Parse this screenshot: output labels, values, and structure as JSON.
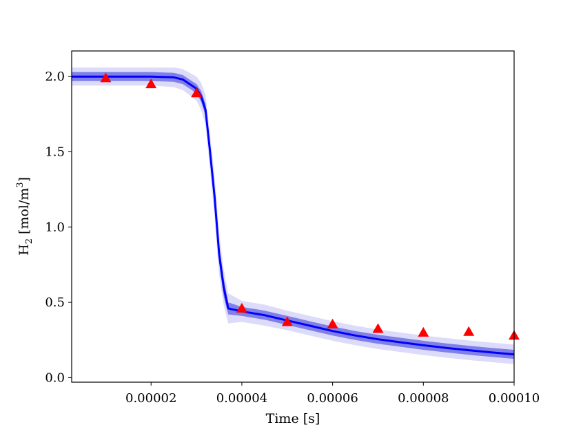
{
  "chart_data": {
    "type": "line",
    "xlabel": "Time [s]",
    "ylabel_parts": {
      "base": "H",
      "sub": "2",
      "mid": " [mol/m",
      "sup": "3",
      "end": "]"
    },
    "xlim": [
      2.5e-06,
      0.0001
    ],
    "ylim": [
      -0.03,
      2.17
    ],
    "x_ticks": [
      2e-05,
      4e-05,
      6e-05,
      8e-05,
      0.0001
    ],
    "x_tick_labels": [
      "0.00002",
      "0.00004",
      "0.00006",
      "0.00008",
      "0.00010"
    ],
    "y_ticks": [
      0.0,
      0.5,
      1.0,
      1.5,
      2.0
    ],
    "y_tick_labels": [
      "0.0",
      "0.5",
      "1.0",
      "1.5",
      "2.0"
    ],
    "grid": false,
    "colors": {
      "line": "#0000ff",
      "band_inner": "#8080e6",
      "band_outer": "#dcdcfa",
      "markers": "#ff0000"
    },
    "series": [
      {
        "kind": "line",
        "x": [
          0,
          1e-05,
          2e-05,
          2.5e-05,
          2.7e-05,
          3e-05,
          3.1e-05,
          3.2e-05,
          3.3e-05,
          3.4e-05,
          3.5e-05,
          3.6e-05,
          3.7e-05,
          4e-05,
          4.5e-05,
          5e-05,
          5.5e-05,
          6e-05,
          6.5e-05,
          7e-05,
          7.5e-05,
          8e-05,
          8.5e-05,
          9e-05,
          9.5e-05,
          0.0001
        ],
        "y": [
          2.0,
          2.0,
          2.0,
          1.995,
          1.98,
          1.92,
          1.87,
          1.78,
          1.5,
          1.2,
          0.82,
          0.6,
          0.46,
          0.44,
          0.415,
          0.38,
          0.345,
          0.31,
          0.28,
          0.255,
          0.235,
          0.215,
          0.198,
          0.182,
          0.168,
          0.155
        ],
        "inner_halfwidth": [
          0.03,
          0.03,
          0.03,
          0.03,
          0.03,
          0.03,
          0.035,
          0.04,
          0.05,
          0.06,
          0.06,
          0.06,
          0.04,
          0.03,
          0.03,
          0.03,
          0.03,
          0.03,
          0.03,
          0.03,
          0.03,
          0.03,
          0.03,
          0.03,
          0.03,
          0.03
        ],
        "outer_halfwidth": [
          0.06,
          0.06,
          0.06,
          0.065,
          0.07,
          0.08,
          0.09,
          0.1,
          0.12,
          0.14,
          0.14,
          0.12,
          0.1,
          0.07,
          0.07,
          0.065,
          0.065,
          0.065,
          0.065,
          0.065,
          0.065,
          0.065,
          0.065,
          0.065,
          0.065,
          0.065
        ]
      },
      {
        "kind": "markers",
        "marker": "triangle",
        "x": [
          1e-05,
          2e-05,
          3e-05,
          4e-05,
          5e-05,
          6e-05,
          7e-05,
          8e-05,
          9e-05,
          0.0001
        ],
        "y": [
          1.99,
          1.95,
          1.89,
          0.46,
          0.37,
          0.355,
          0.325,
          0.3,
          0.305,
          0.28
        ]
      }
    ]
  }
}
